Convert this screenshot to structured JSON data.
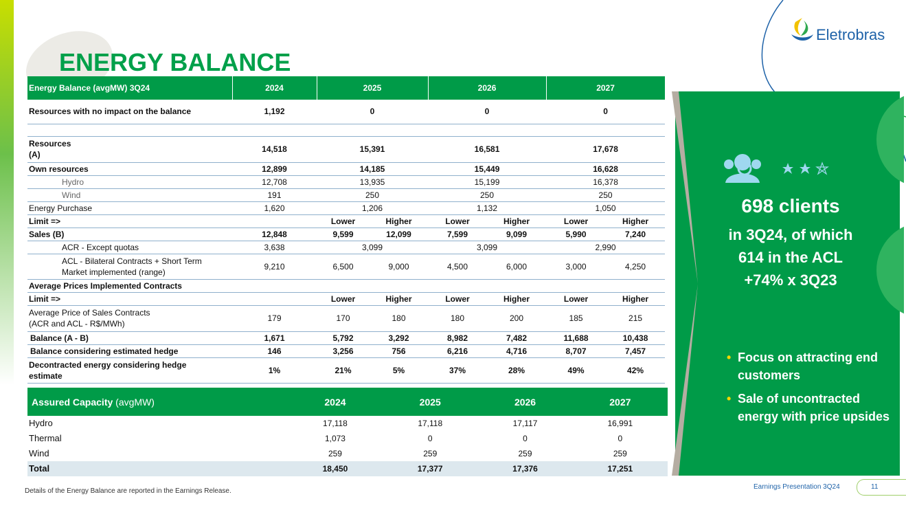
{
  "title": "ENERGY BALANCE",
  "logo": "Eletrobras",
  "balance_table": {
    "header": [
      "Energy Balance (avgMW) 3Q24",
      "2024",
      "2025",
      "2026",
      "2027"
    ],
    "rows": [
      [
        "Resources with no impact on the balance",
        "1,192",
        "0",
        "0",
        "0"
      ],
      [
        "Resources\n(A)",
        "14,518",
        "15,391",
        "16,581",
        "17,678"
      ],
      [
        "Own resources",
        "12,899",
        "14,185",
        "15,449",
        "16,628"
      ],
      [
        "Hydro",
        "12,708",
        "13,935",
        "15,199",
        "16,378"
      ],
      [
        "Wind",
        "191",
        "250",
        "250",
        "250"
      ],
      [
        "Energy Purchase",
        "1,620",
        "1,206",
        "1,132",
        "1,050"
      ],
      [
        "Limit =>",
        null,
        "Lower",
        "Higher",
        "Lower",
        "Higher",
        "Lower",
        "Higher"
      ],
      [
        "Sales (B)",
        "12,848",
        "9,599",
        "12,099",
        "7,599",
        "9,099",
        "5,990",
        "7,240"
      ],
      [
        "ACR - Except quotas",
        "3,638",
        "3,099",
        "3,099",
        "2,990"
      ],
      [
        "ACL - Bilateral Contracts + Short Term\nMarket implemented (range)",
        "9,210",
        "6,500",
        "9,000",
        "4,500",
        "6,000",
        "3,000",
        "4,250"
      ],
      [
        "Average Prices Implemented Contracts"
      ],
      [
        "Limit =>",
        null,
        "Lower",
        "Higher",
        "Lower",
        "Higher",
        "Lower",
        "Higher"
      ],
      [
        "Average Price of Sales Contracts\n(ACR and ACL - R$/MWh)",
        "179",
        "170",
        "180",
        "180",
        "200",
        "185",
        "215"
      ],
      [
        "Balance (A - B)",
        "1,671",
        "5,792",
        "3,292",
        "8,982",
        "7,482",
        "11,688",
        "10,438"
      ],
      [
        "Balance considering estimated hedge",
        "146",
        "3,256",
        "756",
        "6,216",
        "4,716",
        "8,707",
        "7,457"
      ],
      [
        "Decontracted energy considering hedge\nestimate",
        "1%",
        "21%",
        "5%",
        "37%",
        "28%",
        "49%",
        "42%"
      ]
    ]
  },
  "capacity_table": {
    "title": "Assured Capacity",
    "unit": "(avgMW)",
    "header": [
      "2024",
      "2025",
      "2026",
      "2027"
    ],
    "rows": [
      [
        "Hydro",
        "17,118",
        "17,118",
        "17,117",
        "16,991"
      ],
      [
        "Thermal",
        "1,073",
        "0",
        "0",
        "0"
      ],
      [
        "Wind",
        "259",
        "259",
        "259",
        "259"
      ],
      [
        "Total",
        "18,450",
        "17,377",
        "17,376",
        "17,251"
      ]
    ]
  },
  "panel": {
    "headline": "698 clients",
    "lines": [
      "in 3Q24, of which",
      "614 in the ACL",
      "+74% x 3Q23"
    ],
    "bullets": [
      "Focus on attracting end customers",
      "Sale of uncontracted energy with price upsides"
    ]
  },
  "footer": {
    "note": "Details of the Energy Balance are reported in the Earnings Release.",
    "label": "Earnings Presentation 3Q24",
    "page": "11"
  }
}
